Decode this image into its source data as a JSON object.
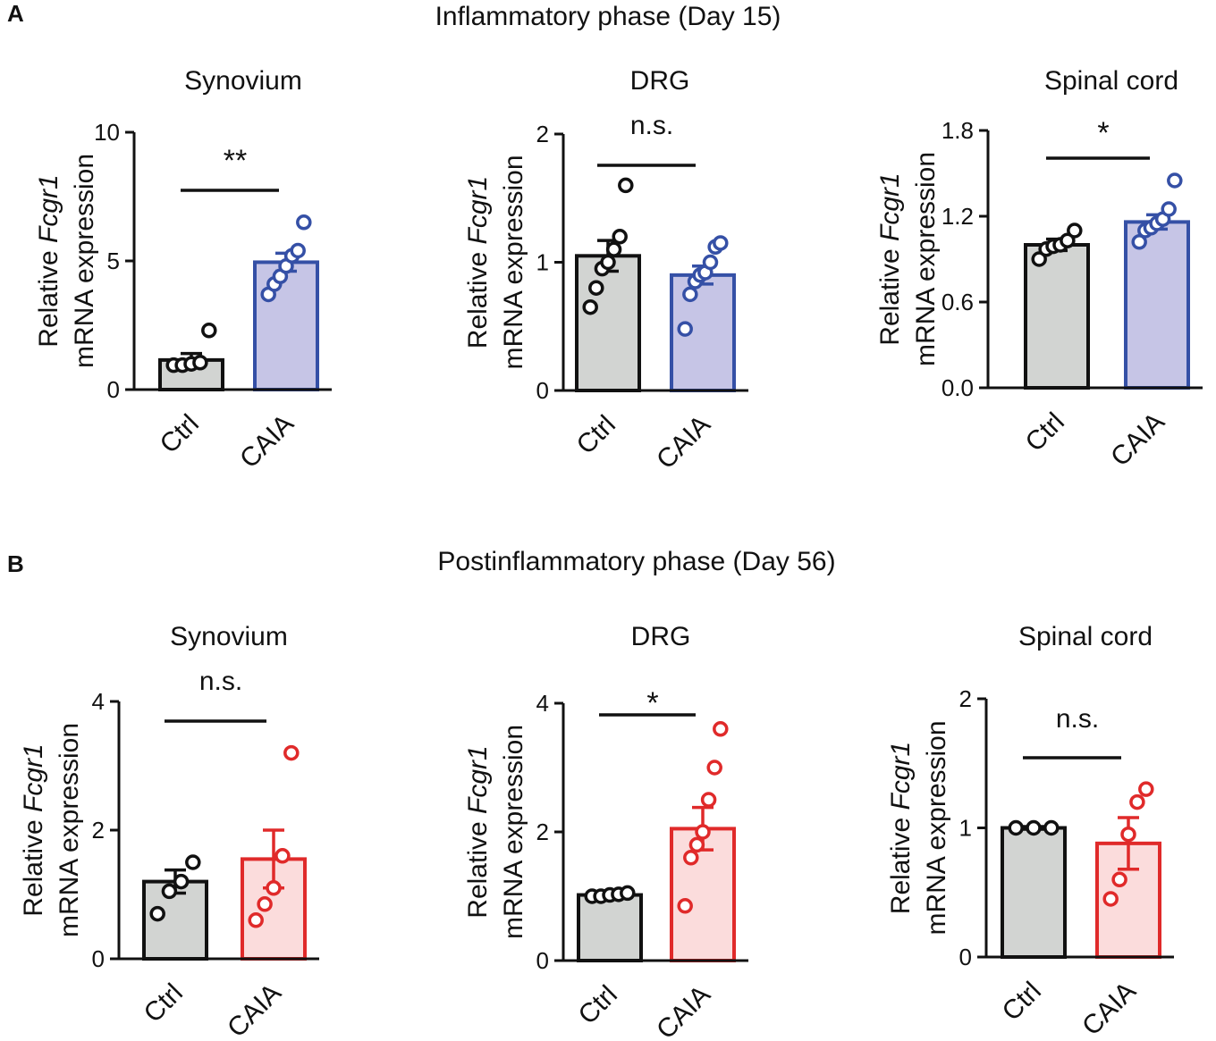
{
  "panels": [
    {
      "letter": "A",
      "phase_title": "Inflammatory phase (Day 15)"
    },
    {
      "letter": "B",
      "phase_title": "Postinflammatory phase (Day 56)"
    }
  ],
  "colors": {
    "ctrl_fill": "#d2d4d2",
    "ctrl_edge": "#111111",
    "caia_day15_fill": "#c6c5e6",
    "caia_day15_edge": "#3550a6",
    "caia_day56_fill": "#fbdcdc",
    "caia_day56_edge": "#e02a2a"
  },
  "ylabel": {
    "line1_prefix": "Relative ",
    "gene": "Fcgr1",
    "line2": "mRNA expression"
  },
  "chart_data": [
    {
      "panel": "A",
      "type": "bar",
      "title": "Synovium",
      "categories": [
        "Ctrl",
        "CAIA"
      ],
      "ylim": [
        0,
        10
      ],
      "yticks": [
        0,
        5,
        10
      ],
      "ytick_labels": [
        "0",
        "5",
        "10"
      ],
      "means": [
        1.15,
        4.95
      ],
      "sem": [
        0.25,
        0.35
      ],
      "points": [
        [
          0.95,
          0.95,
          1.0,
          1.05,
          2.3
        ],
        [
          3.7,
          4.1,
          4.4,
          4.8,
          5.2,
          5.4,
          6.5
        ]
      ],
      "significance": "**"
    },
    {
      "panel": "A",
      "type": "bar",
      "title": "DRG",
      "categories": [
        "Ctrl",
        "CAIA"
      ],
      "ylim": [
        0,
        2
      ],
      "yticks": [
        0,
        1,
        2
      ],
      "ytick_labels": [
        "0",
        "1",
        "2"
      ],
      "means": [
        1.05,
        0.9
      ],
      "sem": [
        0.12,
        0.07
      ],
      "points": [
        [
          0.65,
          0.8,
          0.95,
          1.0,
          1.1,
          1.2,
          1.6
        ],
        [
          0.48,
          0.75,
          0.85,
          0.9,
          0.92,
          1.0,
          1.12,
          1.15
        ]
      ],
      "significance": "n.s."
    },
    {
      "panel": "A",
      "type": "bar",
      "title": "Spinal cord",
      "categories": [
        "Ctrl",
        "CAIA"
      ],
      "ylim": [
        0,
        1.8
      ],
      "yticks": [
        0,
        0.6,
        1.2,
        1.8
      ],
      "ytick_labels": [
        "0.0",
        "0.6",
        "1.2",
        "1.8"
      ],
      "means": [
        1.0,
        1.16
      ],
      "sem": [
        0.04,
        0.05
      ],
      "points": [
        [
          0.9,
          0.97,
          0.99,
          1.0,
          1.03,
          1.1
        ],
        [
          1.02,
          1.1,
          1.12,
          1.15,
          1.18,
          1.25,
          1.45
        ]
      ],
      "significance": "*"
    },
    {
      "panel": "B",
      "type": "bar",
      "title": "Synovium",
      "categories": [
        "Ctrl",
        "CAIA"
      ],
      "ylim": [
        0,
        4
      ],
      "yticks": [
        0,
        2,
        4
      ],
      "ytick_labels": [
        "0",
        "2",
        "4"
      ],
      "means": [
        1.2,
        1.55
      ],
      "sem": [
        0.18,
        0.45
      ],
      "points": [
        [
          0.7,
          1.05,
          1.2,
          1.5
        ],
        [
          0.6,
          0.85,
          1.1,
          1.6,
          3.2
        ]
      ],
      "significance": "n.s."
    },
    {
      "panel": "B",
      "type": "bar",
      "title": "DRG",
      "categories": [
        "Ctrl",
        "CAIA"
      ],
      "ylim": [
        0,
        4
      ],
      "yticks": [
        0,
        2,
        4
      ],
      "ytick_labels": [
        "0",
        "2",
        "4"
      ],
      "means": [
        1.02,
        2.05
      ],
      "sem": [
        0.04,
        0.33
      ],
      "points": [
        [
          1.0,
          1.0,
          1.02,
          1.03,
          1.05
        ],
        [
          0.85,
          1.6,
          1.8,
          2.0,
          2.5,
          3.0,
          3.6
        ]
      ],
      "significance": "*"
    },
    {
      "panel": "B",
      "type": "bar",
      "title": "Spinal cord",
      "categories": [
        "Ctrl",
        "CAIA"
      ],
      "ylim": [
        0,
        2
      ],
      "yticks": [
        0,
        1,
        2
      ],
      "ytick_labels": [
        "0",
        "1",
        "2"
      ],
      "means": [
        1.0,
        0.88
      ],
      "sem": [
        0.01,
        0.2
      ],
      "points": [
        [
          1.0,
          1.0,
          1.0
        ],
        [
          0.45,
          0.6,
          0.95,
          1.2,
          1.3
        ]
      ],
      "significance": "n.s."
    }
  ]
}
